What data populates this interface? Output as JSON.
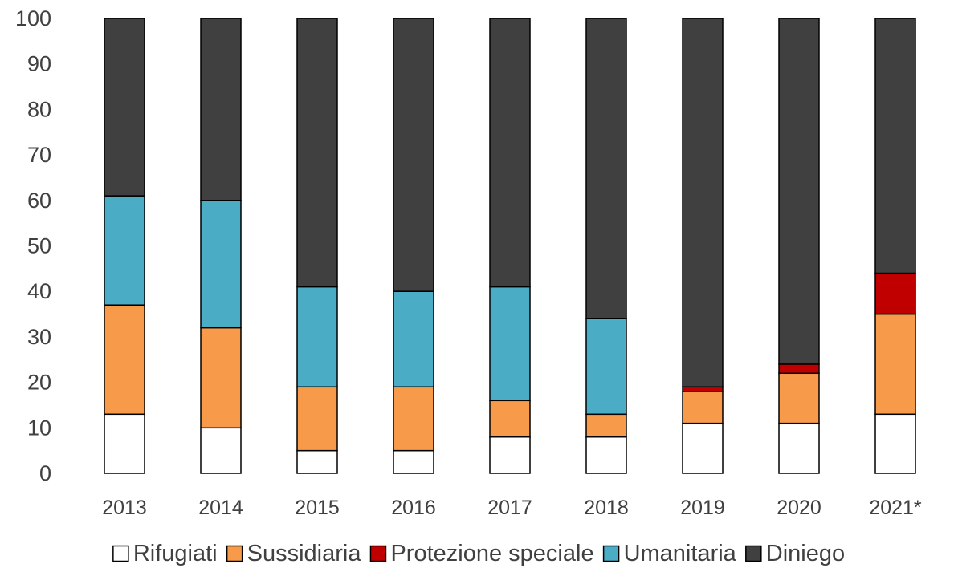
{
  "chart_data": {
    "type": "bar",
    "stacked": true,
    "title": "",
    "xlabel": "",
    "ylabel": "",
    "categories": [
      "2013",
      "2014",
      "2015",
      "2016",
      "2017",
      "2018",
      "2019",
      "2020",
      "2021*"
    ],
    "ylim": [
      0,
      100
    ],
    "yticks": [
      0,
      10,
      20,
      30,
      40,
      50,
      60,
      70,
      80,
      90,
      100
    ],
    "grid": false,
    "legend_position": "bottom",
    "series": [
      {
        "name": "Rifugiati",
        "color": "#ffffff",
        "values": [
          13,
          10,
          5,
          5,
          8,
          8,
          11,
          11,
          13
        ]
      },
      {
        "name": "Sussidiaria",
        "color": "#f79a4a",
        "values": [
          24,
          22,
          14,
          14,
          8,
          5,
          7,
          11,
          22
        ]
      },
      {
        "name": "Protezione speciale",
        "color": "#c00000",
        "values": [
          0,
          0,
          0,
          0,
          0,
          0,
          1,
          2,
          9
        ]
      },
      {
        "name": "Umanitaria",
        "color": "#4bacc6",
        "values": [
          24,
          28,
          22,
          21,
          25,
          21,
          0,
          0,
          0
        ]
      },
      {
        "name": "Diniego",
        "color": "#404040",
        "values": [
          39,
          40,
          59,
          60,
          59,
          66,
          81,
          76,
          56
        ]
      }
    ]
  }
}
